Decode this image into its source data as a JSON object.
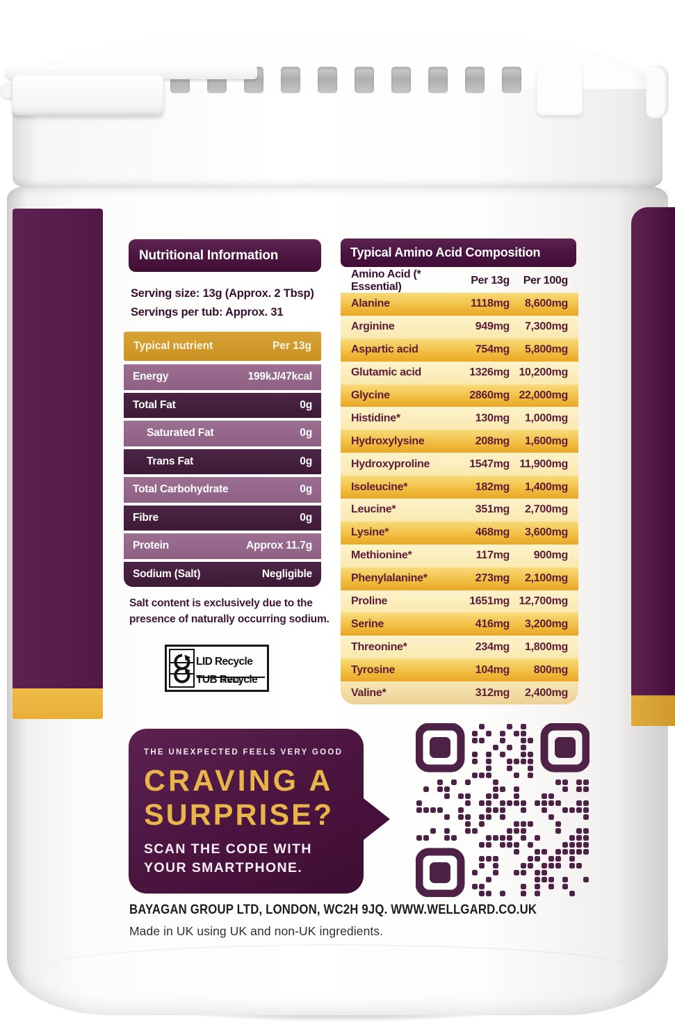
{
  "nutrition": {
    "title": "Nutritional Information",
    "serving_size": "Serving size: 13g (Approx. 2 Tbsp)",
    "servings_per_tub": "Servings per tub: Approx. 31",
    "table": {
      "header": {
        "nutrient": "Typical nutrient",
        "amount": "Per 13g"
      },
      "rows": [
        {
          "label": "Energy",
          "value": "199kJ/47kcal",
          "indent": false
        },
        {
          "label": "Total Fat",
          "value": "0g",
          "indent": false
        },
        {
          "label": "Saturated Fat",
          "value": "0g",
          "indent": true
        },
        {
          "label": "Trans Fat",
          "value": "0g",
          "indent": true
        },
        {
          "label": "Total Carbohydrate",
          "value": "0g",
          "indent": false
        },
        {
          "label": "Fibre",
          "value": "0g",
          "indent": false
        },
        {
          "label": "Protein",
          "value": "Approx 11.7g",
          "indent": false
        },
        {
          "label": "Sodium (Salt)",
          "value": "Negligible",
          "indent": false
        }
      ]
    },
    "note": "Salt content is exclusively due to the presence of naturally occurring sodium."
  },
  "recycle": {
    "lid_label": "LID Recycle",
    "rinse_label": "RINSE",
    "tub_label": "TUB Recycle",
    "icon": "recycle-arrow-icon"
  },
  "amino": {
    "title": "Typical Amino Acid Composition",
    "columns": [
      "Amino Acid (* Essential)",
      "Per 13g",
      "Per 100g"
    ],
    "rows": [
      [
        "Alanine",
        "1118mg",
        "8,600mg"
      ],
      [
        "Arginine",
        "949mg",
        "7,300mg"
      ],
      [
        "Aspartic acid",
        "754mg",
        "5,800mg"
      ],
      [
        "Glutamic acid",
        "1326mg",
        "10,200mg"
      ],
      [
        "Glycine",
        "2860mg",
        "22,000mg"
      ],
      [
        "Histidine*",
        "130mg",
        "1,000mg"
      ],
      [
        "Hydroxylysine",
        "208mg",
        "1,600mg"
      ],
      [
        "Hydroxyproline",
        "1547mg",
        "11,900mg"
      ],
      [
        "Isoleucine*",
        "182mg",
        "1,400mg"
      ],
      [
        "Leucine*",
        "351mg",
        "2,700mg"
      ],
      [
        "Lysine*",
        "468mg",
        "3,600mg"
      ],
      [
        "Methionine*",
        "117mg",
        "900mg"
      ],
      [
        "Phenylalanine*",
        "273mg",
        "2,100mg"
      ],
      [
        "Proline",
        "1651mg",
        "12,700mg"
      ],
      [
        "Serine",
        "416mg",
        "3,200mg"
      ],
      [
        "Threonine*",
        "234mg",
        "1,800mg"
      ],
      [
        "Tyrosine",
        "104mg",
        "800mg"
      ],
      [
        "Valine*",
        "312mg",
        "2,400mg"
      ]
    ]
  },
  "promo": {
    "tagline": "THE UNEXPECTED FEELS VERY GOOD",
    "headline1": "CRAVING A",
    "headline2": "SURPRISE?",
    "cta1": "SCAN THE CODE WITH",
    "cta2": "YOUR SMARTPHONE."
  },
  "qr": {
    "meaning": "qr-code",
    "color": "#4e2146"
  },
  "footer": {
    "address": "BAYAGAN GROUP LTD, LONDON, WC2H 9JQ. WWW.WELLGARD.CO.UK",
    "origin": "Made in UK using UK and non-UK ingredients."
  },
  "colors": {
    "purple_dark": "#420e35",
    "purple_band": "#571c4a",
    "purple_row_light": "#95688b",
    "purple_row_dark": "#45203e",
    "gold_table_header": "#cf9625",
    "gold_row": "#f0bb3e",
    "cream_row": "#fbeebd",
    "gold_stripe": "#ecb545",
    "gold_text": "#e9b54b",
    "amino_text": "#5e1c37"
  }
}
